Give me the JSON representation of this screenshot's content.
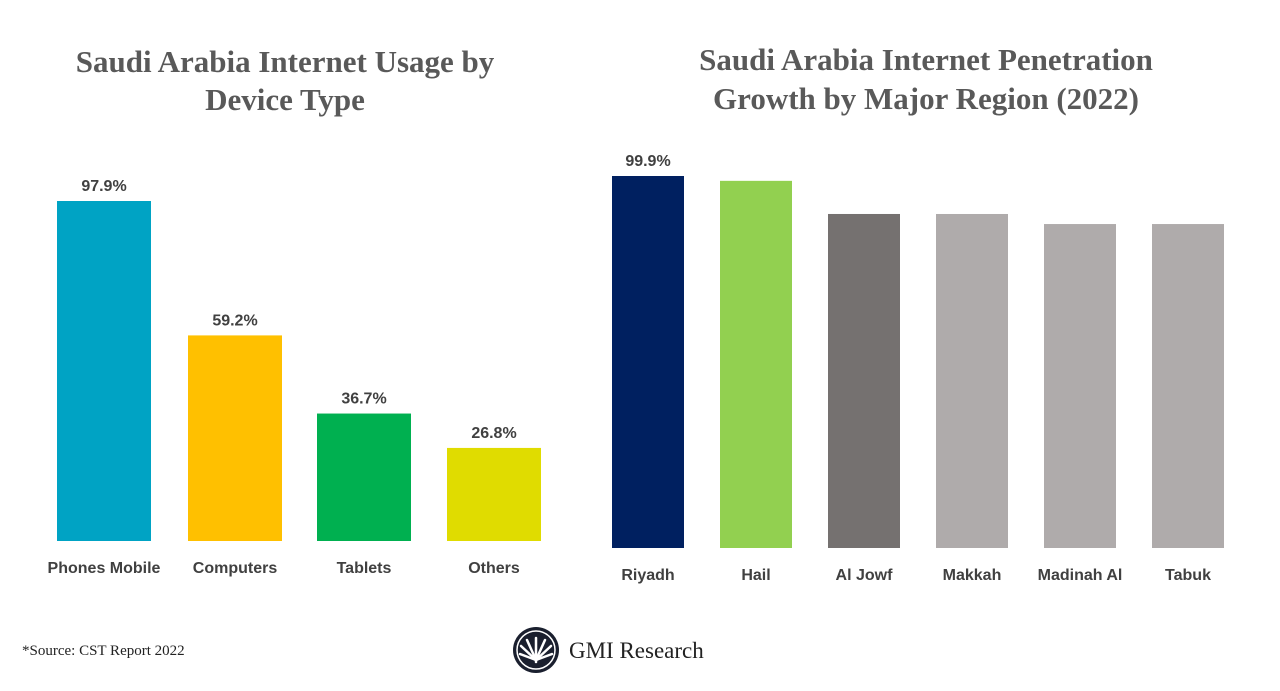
{
  "chart_data": [
    {
      "type": "bar",
      "title": [
        "Saudi Arabia Internet Usage by",
        "Device Type"
      ],
      "categories": [
        "Phones Mobile",
        "Computers",
        "Tablets",
        "Others"
      ],
      "values": [
        97.9,
        59.2,
        36.7,
        26.8
      ],
      "data_labels": [
        "97.9%",
        "59.2%",
        "36.7%",
        "26.8%"
      ],
      "colors": [
        "#00a3c4",
        "#ffc000",
        "#00b050",
        "#e0dc00"
      ],
      "grid": false,
      "ylim": [
        0,
        100
      ]
    },
    {
      "type": "bar",
      "title": [
        "Saudi Arabia Internet Penetration",
        "Growth by Major Region (2022)"
      ],
      "categories": [
        "Riyadh",
        "Hail",
        "Al Jowf",
        "Makkah",
        "Madinah Al",
        "Tabuk"
      ],
      "values": [
        99.9,
        98.6,
        89.7,
        89.7,
        87.0,
        87.0
      ],
      "data_labels": [
        "99.9%",
        "",
        "",
        "",
        "",
        ""
      ],
      "colors": [
        "#002060",
        "#92d050",
        "#757170",
        "#afabab",
        "#afabab",
        "#afabab"
      ],
      "grid": false,
      "ylim": [
        0,
        100
      ]
    }
  ],
  "footer": {
    "source": "*Source: CST Report 2022",
    "brand": "GMI Research"
  }
}
